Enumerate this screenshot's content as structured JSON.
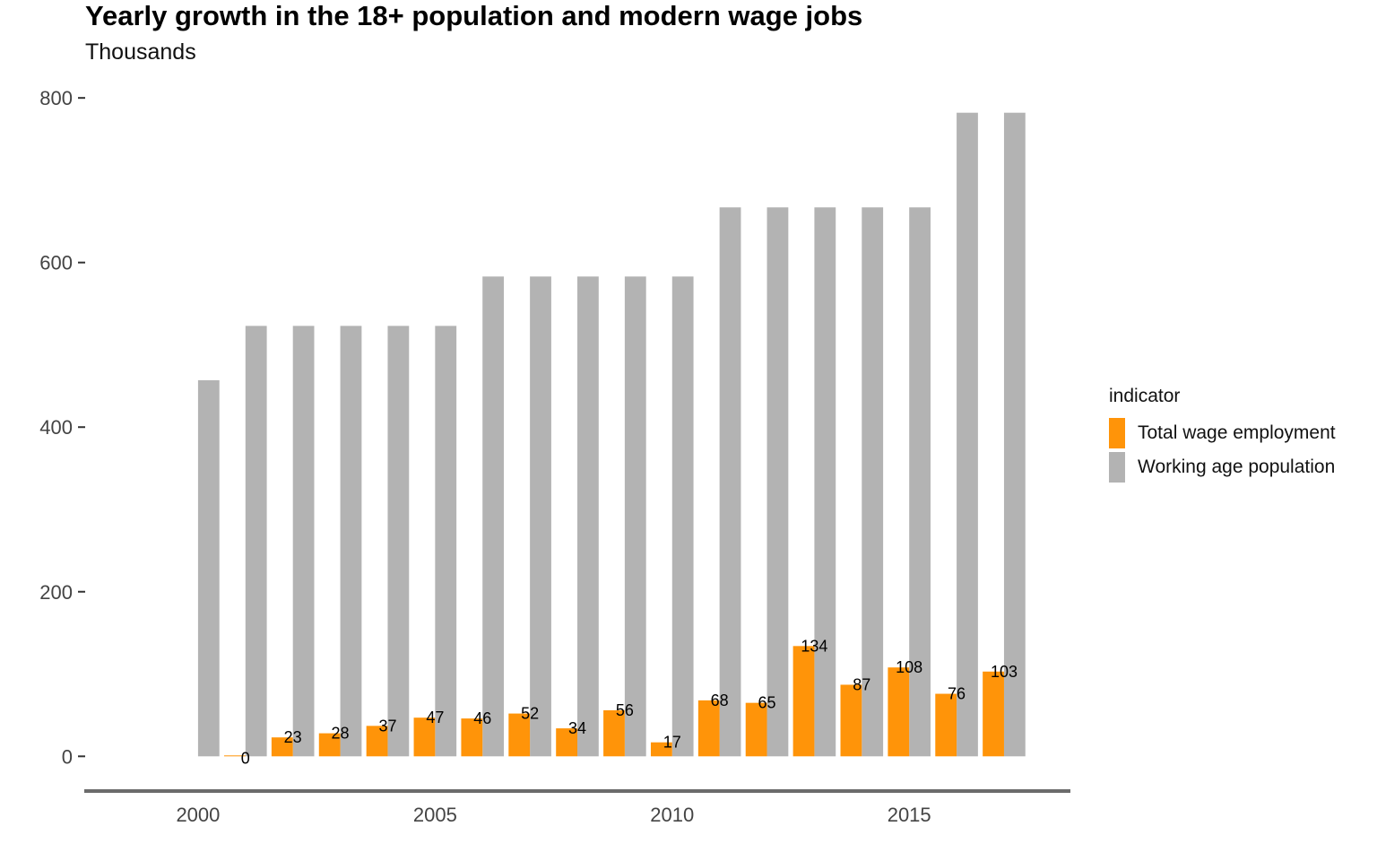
{
  "chart_data": {
    "type": "bar",
    "title": "Yearly growth in the 18+ population and modern wage jobs",
    "subtitle": "Thousands",
    "xlabel": "",
    "ylabel": "",
    "x": [
      2000,
      2001,
      2002,
      2003,
      2004,
      2005,
      2006,
      2007,
      2008,
      2009,
      2010,
      2011,
      2012,
      2013,
      2014,
      2015,
      2016,
      2017
    ],
    "xlim": [
      1997.6,
      2018.4
    ],
    "ylim": [
      -40,
      810
    ],
    "x_ticks": [
      2000,
      2005,
      2010,
      2015
    ],
    "y_ticks": [
      0,
      200,
      400,
      600,
      800
    ],
    "grid": false,
    "legend": {
      "title": "indicator",
      "position": "right"
    },
    "series": [
      {
        "name": "Total wage employment",
        "color": "#FF9409",
        "values": [
          null,
          0,
          23,
          28,
          37,
          47,
          46,
          52,
          34,
          56,
          17,
          68,
          65,
          134,
          87,
          108,
          76,
          103
        ],
        "labels": [
          "",
          "0",
          "23",
          "28",
          "37",
          "47",
          "46",
          "52",
          "34",
          "56",
          "17",
          "68",
          "65",
          "134",
          "87",
          "108",
          "76",
          "103"
        ]
      },
      {
        "name": "Working age population",
        "color": "#B3B3B3",
        "values": [
          457,
          523,
          523,
          523,
          523,
          523,
          583,
          583,
          583,
          583,
          583,
          667,
          667,
          667,
          667,
          667,
          782,
          782
        ]
      }
    ]
  }
}
